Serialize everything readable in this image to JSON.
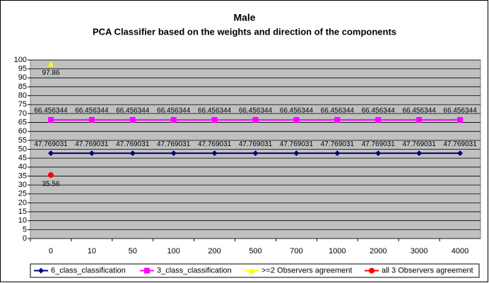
{
  "chart_data": {
    "type": "line",
    "title": "Male",
    "subtitle": "PCA Classifier based on the weights and direction of the components",
    "categories": [
      "0",
      "10",
      "50",
      "100",
      "200",
      "500",
      "700",
      "1000",
      "2000",
      "3000",
      "4000"
    ],
    "series": [
      {
        "name": "6_class_classification",
        "color": "#000080",
        "marker": "diamond",
        "values": [
          47.769031,
          47.769031,
          47.769031,
          47.769031,
          47.769031,
          47.769031,
          47.769031,
          47.769031,
          47.769031,
          47.769031,
          47.769031
        ]
      },
      {
        "name": "3_class_classification",
        "color": "#ff00ff",
        "marker": "square",
        "values": [
          66.456344,
          66.456344,
          66.456344,
          66.456344,
          66.456344,
          66.456344,
          66.456344,
          66.456344,
          66.456344,
          66.456344,
          66.456344
        ]
      },
      {
        "name": ">=2 Observers agreement",
        "color": "#ffff00",
        "marker": "triangle",
        "values": [
          97.86,
          null,
          null,
          null,
          null,
          null,
          null,
          null,
          null,
          null,
          null
        ]
      },
      {
        "name": "all 3 Observers agreement",
        "color": "#ff0000",
        "marker": "circle",
        "values": [
          35.56,
          null,
          null,
          null,
          null,
          null,
          null,
          null,
          null,
          null,
          null
        ]
      }
    ],
    "ylim": [
      0,
      100
    ],
    "yticks": [
      0,
      5,
      10,
      15,
      20,
      25,
      30,
      35,
      40,
      45,
      50,
      55,
      60,
      65,
      70,
      75,
      80,
      85,
      90,
      95,
      100
    ],
    "grid": true,
    "legend": "bottom"
  }
}
